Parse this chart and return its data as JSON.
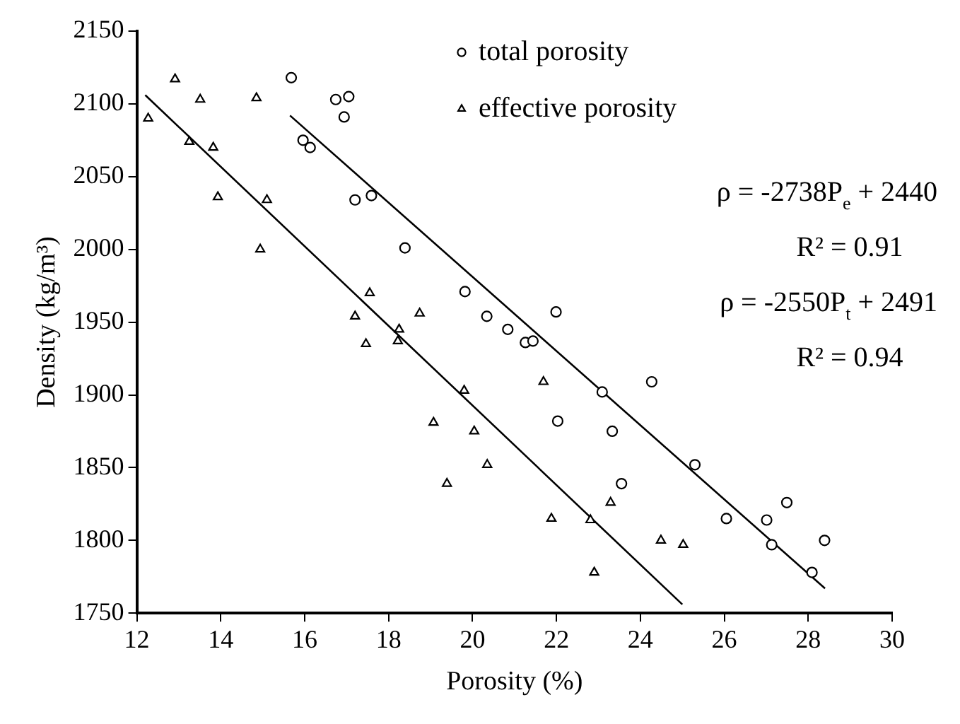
{
  "chart_data": {
    "type": "scatter",
    "xlabel": "Porosity (%)",
    "ylabel": "Density (kg/m³)",
    "xlim": [
      12,
      30
    ],
    "xticks": [
      12,
      14,
      16,
      18,
      20,
      22,
      24,
      26,
      28,
      30
    ],
    "ylim": [
      1750,
      2150
    ],
    "yticks": [
      1750,
      1800,
      1850,
      1900,
      1950,
      2000,
      2050,
      2100,
      2150
    ],
    "grid": false,
    "legend": "top",
    "annotations": [
      "ρ = -2738P$_{e}$ + 2440",
      "R² = 0.91",
      "ρ = -2550P$_{t}$ + 2491",
      "R² = 0.94"
    ],
    "series": [
      {
        "name": "total porosity",
        "type": "scatter",
        "marker": "circle",
        "color": "#000000",
        "x": [
          15.68,
          16.74,
          17.05,
          16.94,
          15.96,
          16.13,
          17.2,
          17.59,
          18.39,
          19.82,
          20.34,
          20.84,
          21.26,
          21.44,
          21.99,
          23.09,
          24.27,
          22.03,
          23.33,
          23.55,
          25.3,
          26.05,
          27.01,
          27.49,
          27.13,
          28.09,
          28.39
        ],
        "values": [
          2118,
          2103,
          2105,
          2091,
          2075,
          2070,
          2034,
          2037,
          2001,
          1971,
          1954,
          1945,
          1936,
          1937,
          1957,
          1902,
          1909,
          1882,
          1875,
          1839,
          1852,
          1815,
          1814,
          1826,
          1797,
          1778,
          1800
        ]
      },
      {
        "name": "effective porosity",
        "type": "scatter",
        "marker": "triangle",
        "color": "#000000",
        "x": [
          12.27,
          12.91,
          13.51,
          14.85,
          13.25,
          13.82,
          13.93,
          15.1,
          14.94,
          17.2,
          17.55,
          18.25,
          18.74,
          17.46,
          18.22,
          19.07,
          19.39,
          19.8,
          21.69,
          20.04,
          20.35,
          21.88,
          22.81,
          23.29,
          22.9,
          24.49,
          25.02
        ],
        "values": [
          2090,
          2117,
          2103,
          2104,
          2074,
          2070,
          2036,
          2034,
          2000,
          1954,
          1970,
          1945,
          1956,
          1935,
          1937,
          1881,
          1839,
          1903,
          1909,
          1875,
          1852,
          1815,
          1814,
          1826,
          1778,
          1800,
          1797
        ]
      },
      {
        "type": "line",
        "marker": "none",
        "color": "#000000",
        "x": [
          12.2,
          25
        ],
        "values": [
          2106,
          1756
        ]
      },
      {
        "type": "line",
        "marker": "none",
        "color": "#000000",
        "x": [
          15.65,
          28.4
        ],
        "values": [
          2092,
          1767
        ]
      }
    ]
  }
}
